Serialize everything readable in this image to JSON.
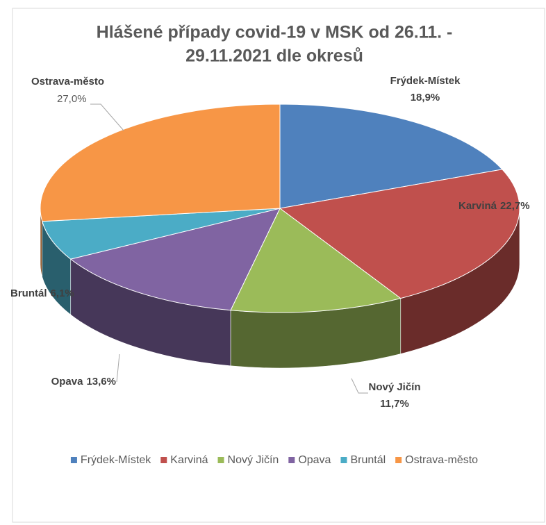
{
  "chart_data": {
    "type": "pie3d",
    "title": [
      "Hlášené případy covid-19 v MSK od 26.11. -",
      "29.11.2021 dle okresů"
    ],
    "categories": [
      "Frýdek-Místek",
      "Karviná",
      "Nový Jičín",
      "Opava",
      "Bruntál",
      "Ostrava-město"
    ],
    "values": [
      18.9,
      22.7,
      11.7,
      13.6,
      6.1,
      27.0
    ],
    "value_labels": [
      "18,9%",
      "22,7%",
      "11,7%",
      "13,6%",
      "6,1%",
      "27,0%"
    ],
    "colors": [
      "#4f81bd",
      "#c0504d",
      "#9bbb59",
      "#8064a2",
      "#4bacc6",
      "#f79646"
    ],
    "legend": "bottom"
  }
}
